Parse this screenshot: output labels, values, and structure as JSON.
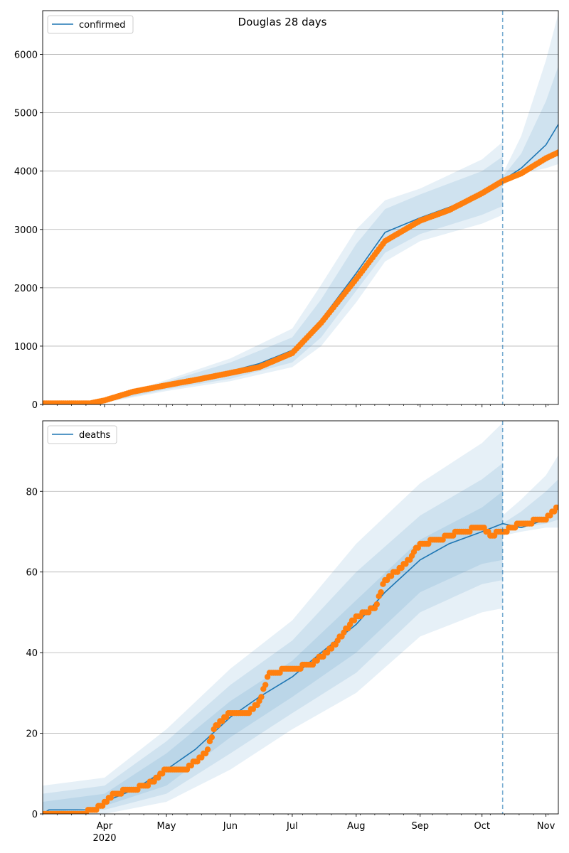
{
  "title": "Douglas 28 days",
  "colors": {
    "model": "#1f77b4",
    "observed": "#ff7f0e",
    "band": "#1f77b4",
    "grid": "#b0b0b0"
  },
  "chart_data": [
    {
      "type": "line",
      "panel": "confirmed",
      "legend": "confirmed",
      "legend_position": "top-left",
      "grid": "y",
      "x_range": [
        "2020-03-02",
        "2020-11-07"
      ],
      "ylim": [
        0,
        6750
      ],
      "yticks": [
        0,
        1000,
        2000,
        3000,
        4000,
        5000,
        6000
      ],
      "forecast_start": "2020-10-11",
      "model_line": {
        "x": [
          "2020-03-02",
          "2020-03-15",
          "2020-03-25",
          "2020-04-01",
          "2020-04-15",
          "2020-05-01",
          "2020-05-15",
          "2020-06-01",
          "2020-06-15",
          "2020-07-01",
          "2020-07-15",
          "2020-08-01",
          "2020-08-15",
          "2020-09-01",
          "2020-09-15",
          "2020-10-01",
          "2020-10-11",
          "2020-10-20",
          "2020-11-01",
          "2020-11-07"
        ],
        "y": [
          0,
          0,
          10,
          50,
          180,
          320,
          440,
          570,
          700,
          930,
          1450,
          2250,
          2950,
          3200,
          3380,
          3600,
          3840,
          4050,
          4450,
          4800
        ]
      },
      "bands": [
        {
          "x": [
            "2020-03-02",
            "2020-04-01",
            "2020-05-01",
            "2020-06-01",
            "2020-07-01",
            "2020-07-15",
            "2020-08-01",
            "2020-08-15",
            "2020-09-01",
            "2020-10-01",
            "2020-10-11"
          ],
          "upper": [
            0,
            60,
            390,
            720,
            1150,
            1800,
            2750,
            3350,
            3600,
            4000,
            4250
          ],
          "lower": [
            0,
            40,
            260,
            440,
            720,
            1150,
            1950,
            2600,
            2920,
            3250,
            3400
          ]
        },
        {
          "x": [
            "2020-03-02",
            "2020-04-01",
            "2020-05-01",
            "2020-06-01",
            "2020-07-01",
            "2020-07-15",
            "2020-08-01",
            "2020-08-15",
            "2020-09-01",
            "2020-10-01",
            "2020-10-11"
          ],
          "upper": [
            0,
            70,
            420,
            790,
            1300,
            2050,
            3000,
            3500,
            3700,
            4200,
            4500
          ],
          "lower": [
            0,
            30,
            230,
            400,
            640,
            1000,
            1750,
            2450,
            2800,
            3100,
            3250
          ]
        },
        {
          "x": [
            "2020-10-11",
            "2020-10-20",
            "2020-11-01",
            "2020-11-07"
          ],
          "upper": [
            3900,
            4300,
            5200,
            5800
          ],
          "lower": [
            3820,
            4000,
            4150,
            4300
          ]
        },
        {
          "x": [
            "2020-10-11",
            "2020-10-20",
            "2020-11-01",
            "2020-11-07"
          ],
          "upper": [
            3950,
            4600,
            5900,
            6700
          ],
          "lower": [
            3800,
            3960,
            4050,
            4120
          ]
        }
      ],
      "observed": {
        "x": [
          "2020-03-02",
          "2020-03-15",
          "2020-03-25",
          "2020-04-01",
          "2020-04-15",
          "2020-05-01",
          "2020-05-15",
          "2020-06-01",
          "2020-06-15",
          "2020-07-01",
          "2020-07-15",
          "2020-08-01",
          "2020-08-15",
          "2020-09-01",
          "2020-09-15",
          "2020-10-01",
          "2020-10-11",
          "2020-10-20",
          "2020-11-01",
          "2020-11-07"
        ],
        "y": [
          20,
          20,
          20,
          70,
          220,
          330,
          420,
          540,
          640,
          880,
          1400,
          2150,
          2800,
          3150,
          3330,
          3620,
          3830,
          3960,
          4220,
          4320
        ]
      }
    },
    {
      "type": "line",
      "panel": "deaths",
      "legend": "deaths",
      "legend_position": "top-left",
      "grid": "y",
      "x_range": [
        "2020-03-02",
        "2020-11-07"
      ],
      "ylim": [
        0,
        97.5
      ],
      "yticks": [
        0,
        20,
        40,
        60,
        80
      ],
      "xticks": [
        {
          "date": "2020-04-01",
          "label": "Apr",
          "sub": "2020"
        },
        {
          "date": "2020-05-01",
          "label": "May"
        },
        {
          "date": "2020-06-01",
          "label": "Jun"
        },
        {
          "date": "2020-07-01",
          "label": "Jul"
        },
        {
          "date": "2020-08-01",
          "label": "Aug"
        },
        {
          "date": "2020-09-01",
          "label": "Sep"
        },
        {
          "date": "2020-10-01",
          "label": "Oct"
        },
        {
          "date": "2020-11-01",
          "label": "Nov"
        }
      ],
      "forecast_start": "2020-10-11",
      "model_line": {
        "x": [
          "2020-03-02",
          "2020-03-05",
          "2020-03-27",
          "2020-04-01",
          "2020-04-15",
          "2020-05-01",
          "2020-05-15",
          "2020-06-01",
          "2020-06-15",
          "2020-07-01",
          "2020-07-15",
          "2020-08-01",
          "2020-08-15",
          "2020-09-01",
          "2020-09-15",
          "2020-10-01",
          "2020-10-11",
          "2020-10-20",
          "2020-11-01",
          "2020-11-07"
        ],
        "y": [
          0,
          1,
          1,
          3,
          6,
          11,
          16,
          24,
          29,
          34,
          40,
          47,
          55,
          63,
          67,
          70,
          72,
          71,
          73,
          76
        ]
      },
      "bands": [
        {
          "x": [
            "2020-03-02",
            "2020-04-01",
            "2020-05-01",
            "2020-06-01",
            "2020-07-01",
            "2020-08-01",
            "2020-09-01",
            "2020-10-01",
            "2020-10-11"
          ],
          "upper": [
            3,
            5,
            15,
            28,
            38,
            53,
            68,
            76,
            80
          ],
          "lower": [
            0,
            2,
            7,
            19,
            29,
            40,
            55,
            62,
            63
          ]
        },
        {
          "x": [
            "2020-03-02",
            "2020-04-01",
            "2020-05-01",
            "2020-06-01",
            "2020-07-01",
            "2020-08-01",
            "2020-09-01",
            "2020-10-01",
            "2020-10-11"
          ],
          "upper": [
            5,
            7,
            18,
            32,
            43,
            60,
            74,
            83,
            87
          ],
          "lower": [
            0,
            1,
            5,
            15,
            25,
            35,
            50,
            57,
            58
          ]
        },
        {
          "x": [
            "2020-03-02",
            "2020-04-01",
            "2020-05-01",
            "2020-06-01",
            "2020-07-01",
            "2020-08-01",
            "2020-09-01",
            "2020-10-01",
            "2020-10-11"
          ],
          "upper": [
            7,
            9,
            21,
            36,
            48,
            67,
            82,
            92,
            97
          ],
          "lower": [
            0,
            0,
            3,
            11,
            21,
            30,
            44,
            50,
            51
          ]
        },
        {
          "x": [
            "2020-10-11",
            "2020-10-20",
            "2020-11-01",
            "2020-11-07"
          ],
          "upper": [
            72,
            75,
            80,
            83
          ],
          "lower": [
            70,
            71,
            72,
            73
          ]
        },
        {
          "x": [
            "2020-10-11",
            "2020-10-20",
            "2020-11-01",
            "2020-11-07"
          ],
          "upper": [
            74,
            78,
            84,
            89
          ],
          "lower": [
            69,
            70,
            71,
            71
          ]
        }
      ],
      "observed": {
        "x": [
          "2020-03-02",
          "2020-03-20",
          "2020-03-27",
          "2020-03-31",
          "2020-04-05",
          "2020-04-15",
          "2020-04-25",
          "2020-05-01",
          "2020-05-10",
          "2020-05-20",
          "2020-05-25",
          "2020-06-01",
          "2020-06-10",
          "2020-06-15",
          "2020-06-20",
          "2020-07-01",
          "2020-07-10",
          "2020-07-20",
          "2020-08-01",
          "2020-08-10",
          "2020-08-15",
          "2020-08-25",
          "2020-09-01",
          "2020-09-10",
          "2020-09-20",
          "2020-10-01",
          "2020-10-05",
          "2020-10-11",
          "2020-10-20",
          "2020-11-01",
          "2020-11-07"
        ],
        "y": [
          0,
          0,
          1,
          2,
          5,
          6,
          8,
          11,
          11,
          15,
          22,
          25,
          25,
          28,
          35,
          36,
          37,
          41,
          49,
          51,
          58,
          62,
          67,
          68,
          70,
          71,
          69,
          70,
          72,
          73,
          76
        ]
      }
    }
  ]
}
